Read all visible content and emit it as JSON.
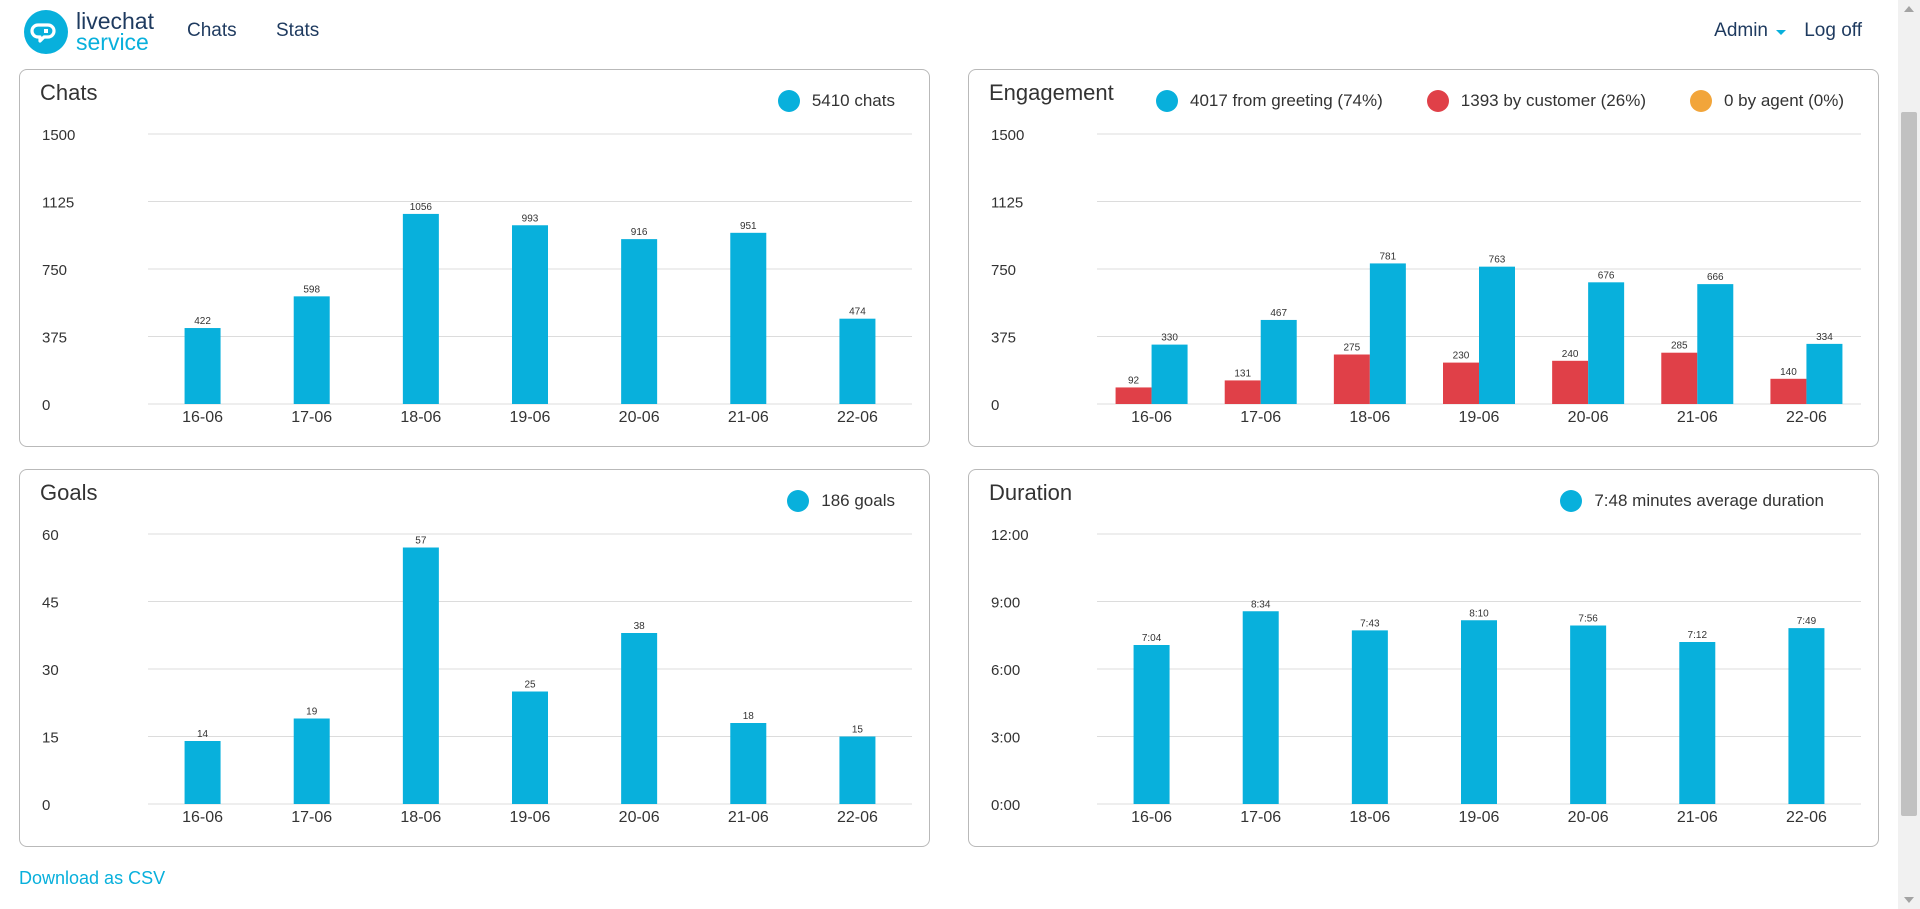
{
  "header": {
    "logo_line1": "livechat",
    "logo_line2": "service",
    "nav": [
      "Chats",
      "Stats"
    ],
    "user_menu": "Admin",
    "logout": "Log off"
  },
  "colors": {
    "blue": "#08b0dc",
    "red": "#e04048",
    "orange": "#f2a53a"
  },
  "download_label": "Download as CSV",
  "panels": {
    "chats": {
      "title": "Chats",
      "legend": [
        {
          "label": "5410 chats",
          "color": "#08b0dc"
        }
      ]
    },
    "engagement": {
      "title": "Engagement",
      "legend": [
        {
          "label": "4017 from greeting (74%)",
          "color": "#08b0dc"
        },
        {
          "label": "1393 by customer (26%)",
          "color": "#e04048"
        },
        {
          "label": "0 by agent (0%)",
          "color": "#f2a53a"
        }
      ]
    },
    "goals": {
      "title": "Goals",
      "legend": [
        {
          "label": "186 goals",
          "color": "#08b0dc"
        }
      ]
    },
    "duration": {
      "title": "Duration",
      "legend": [
        {
          "label": "7:48 minutes average duration",
          "color": "#08b0dc"
        }
      ]
    }
  },
  "chart_data": [
    {
      "id": "chats",
      "type": "bar",
      "categories": [
        "16-06",
        "17-06",
        "18-06",
        "19-06",
        "20-06",
        "21-06",
        "22-06"
      ],
      "yticks": [
        "0",
        "375",
        "750",
        "1125",
        "1500"
      ],
      "ylim": [
        0,
        1500
      ],
      "series": [
        {
          "color": "#08b0dc",
          "values": [
            422,
            598,
            1056,
            993,
            916,
            951,
            474
          ],
          "labels": [
            "422",
            "598",
            "1056",
            "993",
            "916",
            "951",
            "474"
          ]
        }
      ]
    },
    {
      "id": "engagement",
      "type": "bar",
      "categories": [
        "16-06",
        "17-06",
        "18-06",
        "19-06",
        "20-06",
        "21-06",
        "22-06"
      ],
      "yticks": [
        "0",
        "375",
        "750",
        "1125",
        "1500"
      ],
      "ylim": [
        0,
        1500
      ],
      "series": [
        {
          "color": "#e04048",
          "values": [
            92,
            131,
            275,
            230,
            240,
            285,
            140
          ],
          "labels": [
            "92",
            "131",
            "275",
            "230",
            "240",
            "285",
            "140"
          ]
        },
        {
          "color": "#08b0dc",
          "values": [
            330,
            467,
            781,
            763,
            676,
            666,
            334
          ],
          "labels": [
            "330",
            "467",
            "781",
            "763",
            "676",
            "666",
            "334"
          ]
        }
      ]
    },
    {
      "id": "goals",
      "type": "bar",
      "categories": [
        "16-06",
        "17-06",
        "18-06",
        "19-06",
        "20-06",
        "21-06",
        "22-06"
      ],
      "yticks": [
        "0",
        "15",
        "30",
        "45",
        "60"
      ],
      "ylim": [
        0,
        60
      ],
      "series": [
        {
          "color": "#08b0dc",
          "values": [
            14,
            19,
            57,
            25,
            38,
            18,
            15
          ],
          "labels": [
            "14",
            "19",
            "57",
            "25",
            "38",
            "18",
            "15"
          ]
        }
      ]
    },
    {
      "id": "duration",
      "type": "bar",
      "categories": [
        "16-06",
        "17-06",
        "18-06",
        "19-06",
        "20-06",
        "21-06",
        "22-06"
      ],
      "yticks": [
        "0:00",
        "3:00",
        "6:00",
        "9:00",
        "12:00"
      ],
      "ylim": [
        0,
        720
      ],
      "series": [
        {
          "color": "#08b0dc",
          "values": [
            424,
            514,
            463,
            490,
            476,
            432,
            469
          ],
          "labels": [
            "7:04",
            "8:34",
            "7:43",
            "8:10",
            "7:56",
            "7:12",
            "7:49"
          ]
        }
      ]
    }
  ]
}
